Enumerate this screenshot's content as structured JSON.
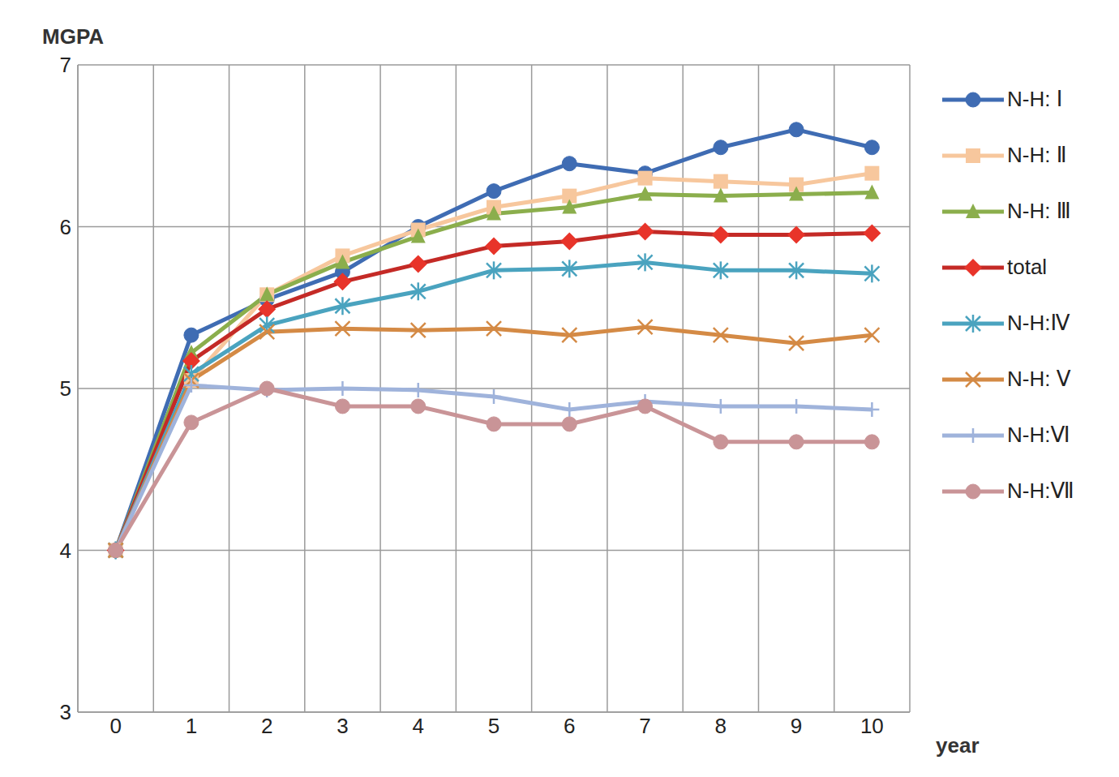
{
  "chart_data": {
    "type": "line",
    "x_label": "year",
    "y_label": "MGPA",
    "categories": [
      0,
      1,
      2,
      3,
      4,
      5,
      6,
      7,
      8,
      9,
      10
    ],
    "ylim": [
      3,
      7
    ],
    "yticks": [
      3,
      4,
      5,
      6,
      7
    ],
    "grid": true,
    "legend": "right",
    "series": [
      {
        "name": "N-H: Ⅰ",
        "color": "#3f6cb3",
        "marker": "circle",
        "values": [
          4,
          5.33,
          5.55,
          5.72,
          6.0,
          6.22,
          6.39,
          6.33,
          6.49,
          6.6,
          6.49
        ]
      },
      {
        "name": "N-H: Ⅱ",
        "color": "#f7c79d",
        "marker": "square",
        "values": [
          4,
          5.05,
          5.58,
          5.82,
          5.98,
          6.12,
          6.19,
          6.3,
          6.28,
          6.26,
          6.33
        ]
      },
      {
        "name": "N-H: Ⅲ",
        "color": "#8bae4c",
        "marker": "triangle",
        "values": [
          4,
          5.22,
          5.58,
          5.78,
          5.94,
          6.08,
          6.12,
          6.2,
          6.19,
          6.2,
          6.21
        ]
      },
      {
        "name": "total",
        "color": "#c42a26",
        "marker": "diamond",
        "values": [
          4,
          5.17,
          5.49,
          5.66,
          5.77,
          5.88,
          5.91,
          5.97,
          5.95,
          5.95,
          5.96
        ]
      },
      {
        "name": "N-H:Ⅳ",
        "color": "#4aa3bf",
        "marker": "star",
        "values": [
          4,
          5.09,
          5.39,
          5.51,
          5.6,
          5.73,
          5.74,
          5.78,
          5.73,
          5.73,
          5.71
        ]
      },
      {
        "name": "N-H: Ⅴ",
        "color": "#d48a45",
        "marker": "x",
        "values": [
          4,
          5.05,
          5.35,
          5.37,
          5.36,
          5.37,
          5.33,
          5.38,
          5.33,
          5.28,
          5.33
        ]
      },
      {
        "name": "N-H:Ⅵ",
        "color": "#9fb3db",
        "marker": "cross",
        "values": [
          4,
          5.02,
          4.99,
          5.0,
          4.99,
          4.95,
          4.87,
          4.92,
          4.89,
          4.89,
          4.87
        ]
      },
      {
        "name": "N-H:Ⅶ",
        "color": "#c99497",
        "marker": "circle",
        "values": [
          4,
          4.79,
          5.0,
          4.89,
          4.89,
          4.78,
          4.78,
          4.89,
          4.67,
          4.67,
          4.67
        ]
      }
    ]
  }
}
